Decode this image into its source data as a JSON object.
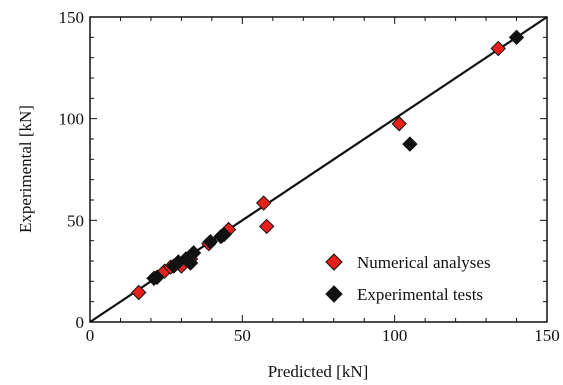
{
  "chart_data": {
    "type": "scatter",
    "xlabel": "Predicted [kN]",
    "ylabel": "Experimental [kN]",
    "xlim": [
      0,
      150
    ],
    "ylim": [
      0,
      150
    ],
    "x_ticks": [
      "0",
      "50",
      "100",
      "150"
    ],
    "y_ticks": [
      "0",
      "50",
      "100",
      "150"
    ],
    "grid": false,
    "legend_position": "bottom-right",
    "reference_line": {
      "x": [
        0,
        150
      ],
      "y": [
        0,
        150
      ]
    },
    "series": [
      {
        "name": "Numerical analyses",
        "color": "#e8201c",
        "marker": "diamond",
        "points": [
          {
            "x": 16,
            "y": 14.5
          },
          {
            "x": 24.5,
            "y": 25
          },
          {
            "x": 26.5,
            "y": 27
          },
          {
            "x": 30,
            "y": 27.5
          },
          {
            "x": 33,
            "y": 31
          },
          {
            "x": 39,
            "y": 38.5
          },
          {
            "x": 45.5,
            "y": 45.5
          },
          {
            "x": 57,
            "y": 58.5
          },
          {
            "x": 58,
            "y": 47
          },
          {
            "x": 101.5,
            "y": 97.5
          },
          {
            "x": 134,
            "y": 134.5
          }
        ]
      },
      {
        "name": "Experimental tests",
        "color": "#111111",
        "marker": "diamond",
        "points": [
          {
            "x": 21,
            "y": 21.5
          },
          {
            "x": 22,
            "y": 22
          },
          {
            "x": 27.5,
            "y": 27.5
          },
          {
            "x": 29,
            "y": 29.5
          },
          {
            "x": 31.5,
            "y": 31
          },
          {
            "x": 33,
            "y": 29
          },
          {
            "x": 34,
            "y": 34
          },
          {
            "x": 39.5,
            "y": 39.5
          },
          {
            "x": 43,
            "y": 42
          },
          {
            "x": 44,
            "y": 43
          },
          {
            "x": 105,
            "y": 87.5
          },
          {
            "x": 140,
            "y": 140
          }
        ]
      }
    ]
  }
}
